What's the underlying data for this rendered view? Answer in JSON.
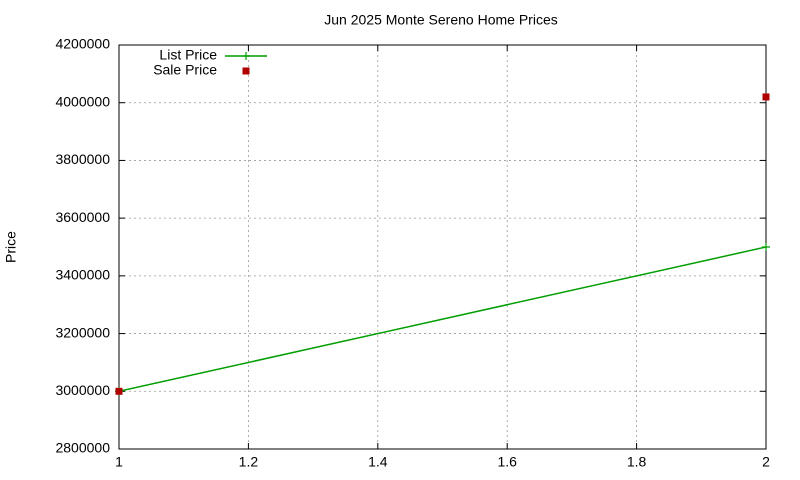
{
  "chart_data": {
    "type": "line",
    "title": "Jun 2025 Monte Sereno Home Prices",
    "y_label": "Price",
    "x": [
      1,
      2
    ],
    "series": [
      {
        "name": "List Price",
        "color": "#009e00",
        "style": "line",
        "values": [
          3000000,
          3500000
        ]
      },
      {
        "name": "Sale Price",
        "color": "#b00000",
        "style": "points",
        "values": [
          3000000,
          4020000
        ]
      }
    ],
    "xlim": [
      1,
      2
    ],
    "xticks": [
      1,
      1.2,
      1.4,
      1.6,
      1.8,
      2
    ],
    "ylim": [
      2800000,
      4200000
    ],
    "yticks": [
      2800000,
      3000000,
      3200000,
      3400000,
      3600000,
      3800000,
      4000000,
      4200000
    ],
    "grid": true,
    "legend": "top-left"
  }
}
